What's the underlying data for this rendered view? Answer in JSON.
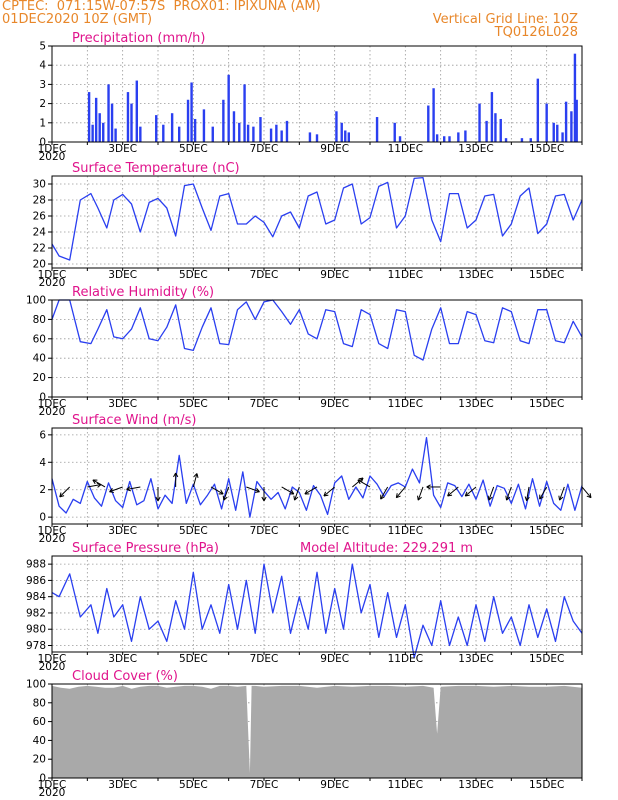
{
  "header": {
    "line1_left": "CPTEC:  071:15W-07:57S  PROX01: IPIXUNA (AM)",
    "line2_left": "01DEC2020 10Z (GMT)",
    "line2_right": "Vertical Grid Line: 10Z",
    "line3_right": "TQ0126L028"
  },
  "colors": {
    "header": "#e8872a",
    "title": "#e0148c",
    "series": "#2a3ff0",
    "cloud": "#a9a9a9",
    "grid": "#999999"
  },
  "x_labels": [
    "1DEC",
    "3DEC",
    "5DEC",
    "7DEC",
    "9DEC",
    "11DEC",
    "13DEC",
    "15DEC"
  ],
  "x_sublabel": "2020",
  "chart_data": [
    {
      "type": "bar",
      "title": "Precipitation (mm/h)",
      "ylim": [
        0,
        5
      ],
      "yticks": [
        0,
        1,
        2,
        3,
        4,
        5
      ],
      "x_unit": "day of December 2020",
      "x": [
        2.05,
        2.15,
        2.25,
        2.35,
        2.45,
        2.6,
        2.7,
        2.8,
        3.15,
        3.25,
        3.4,
        3.5,
        3.95,
        4.15,
        4.4,
        4.6,
        4.85,
        4.95,
        5.05,
        5.3,
        5.55,
        5.85,
        6.0,
        6.15,
        6.3,
        6.45,
        6.55,
        6.7,
        6.9,
        7.2,
        7.35,
        7.5,
        7.65,
        8.3,
        8.5,
        9.05,
        9.2,
        9.3,
        9.4,
        10.2,
        10.7,
        10.85,
        11.65,
        11.8,
        11.9,
        12.1,
        12.25,
        12.5,
        12.7,
        13.1,
        13.3,
        13.45,
        13.55,
        13.7,
        13.85,
        14.3,
        14.55,
        14.75,
        15.0,
        15.2,
        15.3,
        15.45,
        15.55,
        15.7,
        15.8,
        15.85
      ],
      "values": [
        2.6,
        0.9,
        2.3,
        1.5,
        1.0,
        3.0,
        2.0,
        0.7,
        2.6,
        2.0,
        3.2,
        0.8,
        1.4,
        0.9,
        1.5,
        0.8,
        2.2,
        3.1,
        1.2,
        1.7,
        0.8,
        2.2,
        3.5,
        1.6,
        1.0,
        3.0,
        0.9,
        0.8,
        1.3,
        0.7,
        0.9,
        0.6,
        1.1,
        0.5,
        0.4,
        1.6,
        1.0,
        0.6,
        0.5,
        1.3,
        1.0,
        0.3,
        1.9,
        2.8,
        0.4,
        0.3,
        0.3,
        0.5,
        0.6,
        2.0,
        1.1,
        2.6,
        1.5,
        1.2,
        0.2,
        0.2,
        0.2,
        3.3,
        2.0,
        1.0,
        0.9,
        0.5,
        2.1,
        1.6,
        4.6,
        2.2
      ]
    },
    {
      "type": "line",
      "title": "Surface Temperature (nC)",
      "ylim": [
        19.5,
        31
      ],
      "yticks": [
        20,
        22,
        24,
        26,
        28,
        30
      ],
      "x_unit": "day of December 2020",
      "x": [
        1,
        1.2,
        1.5,
        1.8,
        2.1,
        2.3,
        2.55,
        2.75,
        3.0,
        3.25,
        3.5,
        3.75,
        4.0,
        4.25,
        4.5,
        4.75,
        5.0,
        5.25,
        5.5,
        5.75,
        6.0,
        6.25,
        6.5,
        6.75,
        7.0,
        7.25,
        7.5,
        7.75,
        8.0,
        8.25,
        8.5,
        8.75,
        9.0,
        9.25,
        9.5,
        9.75,
        10.0,
        10.25,
        10.5,
        10.75,
        11.0,
        11.25,
        11.5,
        11.75,
        12.0,
        12.25,
        12.5,
        12.75,
        13.0,
        13.25,
        13.5,
        13.75,
        14.0,
        14.25,
        14.5,
        14.75,
        15.0,
        15.25,
        15.5,
        15.75,
        16.0
      ],
      "values": [
        22.5,
        21.0,
        20.5,
        28.0,
        28.8,
        27.0,
        24.5,
        28.0,
        28.7,
        27.5,
        24.0,
        27.7,
        28.2,
        27.0,
        23.5,
        29.8,
        30.0,
        27.0,
        24.2,
        28.5,
        28.8,
        25.0,
        25.0,
        26.0,
        25.2,
        23.4,
        26.0,
        26.5,
        24.5,
        28.5,
        29.0,
        25.0,
        25.5,
        29.5,
        30.0,
        25.0,
        25.8,
        29.7,
        30.2,
        24.5,
        26.0,
        30.7,
        30.8,
        25.5,
        22.8,
        28.8,
        28.8,
        24.5,
        25.5,
        28.5,
        28.7,
        23.5,
        25.0,
        28.5,
        29.5,
        23.8,
        25.0,
        28.5,
        28.7,
        25.5,
        28.0
      ]
    },
    {
      "type": "line",
      "title": "Relative Humidity (%)",
      "ylim": [
        0,
        100
      ],
      "yticks": [
        0,
        20,
        40,
        60,
        80,
        100
      ],
      "x_unit": "day of December 2020",
      "x": [
        1,
        1.2,
        1.5,
        1.8,
        2.1,
        2.3,
        2.55,
        2.75,
        3.0,
        3.25,
        3.5,
        3.75,
        4.0,
        4.25,
        4.5,
        4.75,
        5.0,
        5.25,
        5.5,
        5.75,
        6.0,
        6.25,
        6.5,
        6.75,
        7.0,
        7.25,
        7.5,
        7.75,
        8.0,
        8.25,
        8.5,
        8.75,
        9.0,
        9.25,
        9.5,
        9.75,
        10.0,
        10.25,
        10.5,
        10.75,
        11.0,
        11.25,
        11.5,
        11.75,
        12.0,
        12.25,
        12.5,
        12.75,
        13.0,
        13.25,
        13.5,
        13.75,
        14.0,
        14.25,
        14.5,
        14.75,
        15.0,
        15.25,
        15.5,
        15.75,
        16.0
      ],
      "values": [
        80,
        100,
        100,
        57,
        55,
        70,
        90,
        62,
        60,
        70,
        92,
        60,
        58,
        72,
        95,
        50,
        48,
        72,
        92,
        55,
        54,
        90,
        98,
        80,
        98,
        100,
        88,
        75,
        90,
        65,
        60,
        90,
        88,
        55,
        52,
        90,
        85,
        55,
        50,
        90,
        88,
        43,
        38,
        70,
        92,
        55,
        55,
        88,
        85,
        58,
        56,
        92,
        88,
        58,
        55,
        90,
        90,
        58,
        56,
        78,
        62
      ]
    },
    {
      "type": "line",
      "title": "Surface Wind (m/s)",
      "ylim": [
        -0.5,
        6.5
      ],
      "yticks": [
        0,
        2,
        4,
        6
      ],
      "x_unit": "day of December 2020",
      "x": [
        1,
        1.2,
        1.4,
        1.6,
        1.8,
        2.0,
        2.2,
        2.4,
        2.6,
        2.8,
        3.0,
        3.2,
        3.4,
        3.6,
        3.8,
        4.0,
        4.2,
        4.4,
        4.6,
        4.8,
        5.0,
        5.2,
        5.4,
        5.6,
        5.8,
        6.0,
        6.2,
        6.4,
        6.6,
        6.8,
        7.0,
        7.2,
        7.4,
        7.6,
        7.8,
        8.0,
        8.2,
        8.4,
        8.6,
        8.8,
        9.0,
        9.2,
        9.4,
        9.6,
        9.8,
        10.0,
        10.2,
        10.4,
        10.6,
        10.8,
        11.0,
        11.2,
        11.4,
        11.6,
        11.8,
        12.0,
        12.2,
        12.4,
        12.6,
        12.8,
        13.0,
        13.2,
        13.4,
        13.6,
        13.8,
        14.0,
        14.2,
        14.4,
        14.6,
        14.8,
        15.0,
        15.2,
        15.4,
        15.6,
        15.8,
        16.0
      ],
      "values": [
        2.8,
        0.8,
        0.3,
        1.3,
        1.0,
        2.6,
        1.4,
        0.8,
        2.5,
        1.2,
        0.7,
        2.6,
        0.9,
        1.2,
        2.8,
        0.6,
        1.6,
        1.0,
        4.5,
        1.0,
        2.4,
        0.9,
        1.6,
        2.4,
        0.6,
        2.8,
        0.5,
        3.3,
        0.0,
        2.6,
        1.9,
        1.3,
        1.8,
        0.6,
        2.2,
        1.8,
        0.5,
        2.3,
        1.6,
        0.2,
        2.5,
        3.0,
        1.3,
        2.2,
        1.4,
        3.0,
        2.4,
        1.5,
        2.3,
        2.5,
        2.2,
        3.5,
        2.5,
        5.8,
        1.6,
        0.7,
        2.5,
        2.3,
        1.5,
        2.4,
        1.3,
        2.7,
        0.8,
        2.3,
        2.1,
        1.0,
        2.4,
        0.6,
        2.8,
        0.8,
        2.6,
        1.0,
        0.5,
        2.4,
        0.5,
        2.3
      ],
      "arrows_x": [
        1.5,
        2.0,
        2.5,
        3.0,
        3.5,
        4.0,
        4.5,
        5.0,
        5.5,
        6.0,
        6.5,
        7.0,
        7.5,
        8.0,
        8.5,
        9.0,
        9.5,
        10.0,
        10.5,
        11.0,
        11.5,
        12.0,
        12.5,
        13.0,
        13.5,
        14.0,
        14.5,
        15.0,
        15.5,
        16.0
      ],
      "arrows_dir_deg": [
        225,
        80,
        300,
        250,
        260,
        180,
        0,
        15,
        120,
        200,
        110,
        180,
        120,
        200,
        240,
        230,
        50,
        300,
        210,
        220,
        200,
        270,
        230,
        230,
        200,
        200,
        190,
        210,
        200,
        140
      ]
    },
    {
      "type": "line",
      "title": "Surface Pressure (hPa)",
      "annotation": "Model Altitude: 229.291 m",
      "ylim": [
        977.2,
        989
      ],
      "yticks": [
        978,
        980,
        982,
        984,
        986,
        988
      ],
      "x_unit": "day of December 2020",
      "x": [
        1,
        1.2,
        1.5,
        1.8,
        2.1,
        2.3,
        2.55,
        2.75,
        3.0,
        3.25,
        3.5,
        3.75,
        4.0,
        4.25,
        4.5,
        4.75,
        5.0,
        5.25,
        5.5,
        5.75,
        6.0,
        6.25,
        6.5,
        6.75,
        7.0,
        7.25,
        7.5,
        7.75,
        8.0,
        8.25,
        8.5,
        8.75,
        9.0,
        9.25,
        9.5,
        9.75,
        10.0,
        10.25,
        10.5,
        10.75,
        11.0,
        11.25,
        11.5,
        11.75,
        12.0,
        12.25,
        12.5,
        12.75,
        13.0,
        13.25,
        13.5,
        13.75,
        14.0,
        14.25,
        14.5,
        14.75,
        15.0,
        15.25,
        15.5,
        15.75,
        16.0
      ],
      "values": [
        984.5,
        984,
        986.8,
        981.5,
        983,
        979.5,
        985,
        981.5,
        983,
        978.5,
        984,
        980,
        981,
        978.5,
        983.5,
        980,
        987,
        980,
        983,
        979.5,
        985.5,
        980,
        986,
        979.5,
        988,
        982,
        986.5,
        979.5,
        984,
        980,
        987,
        979.5,
        985,
        980,
        988,
        982,
        985.5,
        979,
        984.5,
        979,
        983,
        976.5,
        980.5,
        978,
        983.5,
        978,
        981.5,
        978,
        983,
        978.5,
        984,
        979.5,
        981.5,
        978,
        983,
        979,
        982.5,
        978.5,
        984,
        981,
        979.5
      ]
    },
    {
      "type": "area",
      "title": "Cloud Cover (%)",
      "ylim": [
        0,
        100
      ],
      "yticks": [
        0,
        20,
        40,
        60,
        80,
        100
      ],
      "x_unit": "day of December 2020",
      "x": [
        1,
        1.25,
        1.5,
        1.75,
        2.0,
        2.25,
        2.5,
        2.75,
        3.0,
        3.25,
        3.5,
        3.75,
        4.0,
        4.25,
        4.5,
        4.75,
        5.0,
        5.25,
        5.5,
        5.75,
        6.0,
        6.25,
        6.5,
        6.6,
        6.65,
        6.75,
        7.0,
        7.5,
        8.0,
        8.5,
        9.0,
        9.5,
        10.0,
        10.5,
        11.0,
        11.5,
        11.8,
        11.9,
        12.0,
        12.5,
        13.0,
        13.5,
        14.0,
        14.5,
        15.0,
        15.5,
        16.0
      ],
      "values": [
        98,
        96,
        95,
        97,
        98,
        97,
        96,
        96,
        98,
        95,
        97,
        98,
        98,
        96,
        97,
        98,
        98,
        97,
        95,
        98,
        98,
        97,
        98,
        5,
        98,
        98,
        97,
        98,
        98,
        96,
        98,
        97,
        98,
        98,
        97,
        98,
        96,
        47,
        97,
        98,
        98,
        97,
        98,
        97,
        97,
        98,
        96
      ]
    }
  ]
}
